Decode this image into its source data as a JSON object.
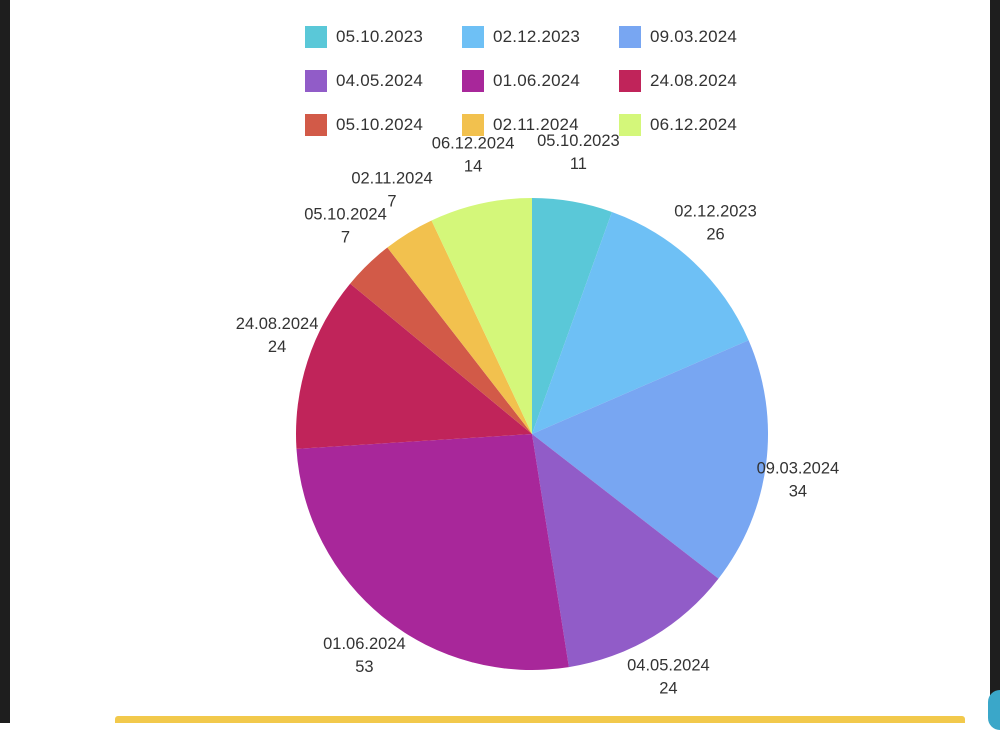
{
  "chart_data": {
    "type": "pie",
    "title": "",
    "legend_position": "top",
    "slices": [
      {
        "label": "05.10.2023",
        "value": 11,
        "color": "#5ac8d8"
      },
      {
        "label": "02.12.2023",
        "value": 26,
        "color": "#6ec0f5"
      },
      {
        "label": "09.03.2024",
        "value": 34,
        "color": "#78a6f2"
      },
      {
        "label": "04.05.2024",
        "value": 24,
        "color": "#915cc8"
      },
      {
        "label": "01.06.2024",
        "value": 53,
        "color": "#a8279a"
      },
      {
        "label": "24.08.2024",
        "value": 24,
        "color": "#c0245a"
      },
      {
        "label": "05.10.2024",
        "value": 7,
        "color": "#d25a48"
      },
      {
        "label": "02.11.2024",
        "value": 7,
        "color": "#f2c14e"
      },
      {
        "label": "06.12.2024",
        "value": 14,
        "color": "#d4f77a"
      }
    ]
  }
}
